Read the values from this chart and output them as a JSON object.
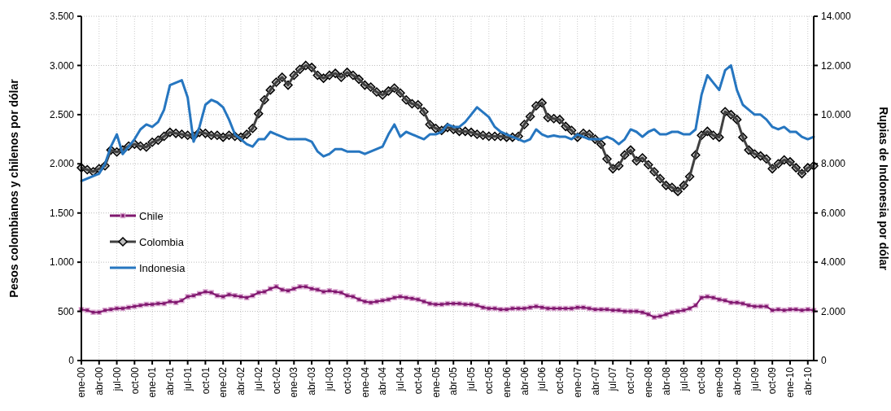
{
  "chart_data": {
    "type": "line",
    "ylabel": "Pesos colombianos y chilenos por dólar",
    "y2label": "Rupias de Indonesia por dólar",
    "categories": [
      "ene-00",
      null,
      null,
      "abr-00",
      null,
      null,
      "jul-00",
      null,
      null,
      "oct-00",
      null,
      null,
      "ene-01",
      null,
      null,
      "abr-01",
      null,
      null,
      "jul-01",
      null,
      null,
      "oct-01",
      null,
      null,
      "ene-02",
      null,
      null,
      "abr-02",
      null,
      null,
      "jul-02",
      null,
      null,
      "oct-02",
      null,
      null,
      "ene-03",
      null,
      null,
      "abr-03",
      null,
      null,
      "jul-03",
      null,
      null,
      "oct-03",
      null,
      null,
      "ene-04",
      null,
      null,
      "abr-04",
      null,
      null,
      "jul-04",
      null,
      null,
      "oct-04",
      null,
      null,
      "ene-05",
      null,
      null,
      "abr-05",
      null,
      null,
      "jul-05",
      null,
      null,
      "oct-05",
      null,
      null,
      "ene-06",
      null,
      null,
      "abr-06",
      null,
      null,
      "jul-06",
      null,
      null,
      "oct-06",
      null,
      null,
      "ene-07",
      null,
      null,
      "abr-07",
      null,
      null,
      "jul-07",
      null,
      null,
      "oct-07",
      null,
      null,
      "ene-08",
      null,
      null,
      "abr-08",
      null,
      null,
      "jul-08",
      null,
      null,
      "oct-08",
      null,
      null,
      "ene-09",
      null,
      null,
      "abr-09",
      null,
      null,
      "jul-09",
      null,
      null,
      "oct-09",
      null,
      null,
      "ene-10",
      null,
      null,
      "abr-10",
      null
    ],
    "ylim": [
      0,
      3500
    ],
    "yticks": [
      0,
      500,
      {
        "value": 1000,
        "label": "1.000"
      },
      {
        "value": 1500,
        "label": "1.500"
      },
      {
        "value": 2000,
        "label": "2.000"
      },
      {
        "value": 2500,
        "label": "2.500"
      },
      {
        "value": 3000,
        "label": "3.000"
      },
      {
        "value": 3500,
        "label": "3.500"
      }
    ],
    "y2lim": [
      0,
      14000
    ],
    "y2ticks": [
      0,
      {
        "value": 2000,
        "label": "2.000"
      },
      {
        "value": 4000,
        "label": "4.000"
      },
      {
        "value": 6000,
        "label": "6.000"
      },
      {
        "value": 8000,
        "label": "8.000"
      },
      {
        "value": 10000,
        "label": "10.000"
      },
      {
        "value": 12000,
        "label": "12.000"
      },
      {
        "value": 14000,
        "label": "14.000"
      }
    ],
    "grid": true,
    "legend": "left",
    "series": [
      {
        "name": "Chile",
        "color": "#80186f",
        "marker": "square",
        "values": [
          520,
          510,
          490,
          490,
          510,
          520,
          530,
          530,
          540,
          550,
          560,
          570,
          570,
          580,
          580,
          600,
          590,
          610,
          650,
          660,
          680,
          700,
          690,
          660,
          650,
          670,
          660,
          650,
          640,
          660,
          690,
          700,
          730,
          750,
          720,
          710,
          730,
          750,
          750,
          730,
          720,
          700,
          710,
          700,
          690,
          660,
          650,
          620,
          600,
          590,
          600,
          610,
          620,
          640,
          650,
          640,
          630,
          620,
          600,
          580,
          570,
          570,
          580,
          580,
          580,
          570,
          570,
          560,
          540,
          530,
          530,
          520,
          520,
          530,
          530,
          530,
          540,
          550,
          540,
          530,
          530,
          530,
          530,
          530,
          540,
          540,
          530,
          520,
          520,
          520,
          510,
          510,
          500,
          500,
          500,
          490,
          470,
          440,
          450,
          470,
          490,
          500,
          510,
          530,
          560,
          640,
          650,
          640,
          620,
          610,
          590,
          590,
          580,
          560,
          550,
          550,
          550,
          510,
          520,
          510,
          520,
          520,
          510,
          520,
          510
        ]
      },
      {
        "name": "Colombia",
        "color": "#404040",
        "marker": "diamond",
        "values": [
          1960,
          1940,
          1920,
          1950,
          1980,
          2140,
          2120,
          2140,
          2180,
          2200,
          2180,
          2170,
          2220,
          2240,
          2280,
          2320,
          2310,
          2300,
          2290,
          2280,
          2320,
          2310,
          2290,
          2290,
          2270,
          2290,
          2280,
          2270,
          2300,
          2360,
          2510,
          2650,
          2750,
          2830,
          2880,
          2800,
          2900,
          2960,
          3000,
          2980,
          2900,
          2870,
          2900,
          2920,
          2880,
          2930,
          2900,
          2860,
          2800,
          2780,
          2730,
          2700,
          2740,
          2770,
          2720,
          2650,
          2610,
          2600,
          2530,
          2400,
          2360,
          2340,
          2370,
          2350,
          2330,
          2330,
          2320,
          2300,
          2290,
          2280,
          2280,
          2280,
          2270,
          2270,
          2280,
          2400,
          2480,
          2590,
          2620,
          2470,
          2460,
          2450,
          2380,
          2340,
          2270,
          2310,
          2300,
          2250,
          2200,
          2050,
          1950,
          1980,
          2090,
          2140,
          2030,
          2060,
          1990,
          1920,
          1850,
          1780,
          1760,
          1720,
          1780,
          1870,
          2090,
          2290,
          2330,
          2290,
          2270,
          2530,
          2500,
          2450,
          2270,
          2140,
          2100,
          2080,
          2050,
          1950,
          2000,
          2040,
          2020,
          1960,
          1900,
          1960,
          1980
        ]
      },
      {
        "name": "Indonesia",
        "color": "#2676c0",
        "marker": "none",
        "axis": "y2",
        "values": [
          7300,
          7400,
          7500,
          7600,
          8000,
          8700,
          9200,
          8400,
          8700,
          9000,
          9400,
          9600,
          9500,
          9700,
          10200,
          11200,
          11300,
          11400,
          10700,
          8900,
          9500,
          10400,
          10600,
          10500,
          10300,
          9800,
          9200,
          9000,
          8800,
          8700,
          9000,
          9000,
          9300,
          9200,
          9100,
          9000,
          9000,
          9000,
          9000,
          8900,
          8500,
          8300,
          8400,
          8600,
          8600,
          8500,
          8500,
          8500,
          8400,
          8500,
          8600,
          8700,
          9200,
          9600,
          9100,
          9300,
          9200,
          9100,
          9000,
          9200,
          9200,
          9300,
          9600,
          9500,
          9500,
          9700,
          10000,
          10300,
          10100,
          9900,
          9500,
          9300,
          9200,
          9100,
          9000,
          8900,
          9000,
          9400,
          9200,
          9100,
          9150,
          9100,
          9100,
          9000,
          9200,
          9100,
          9000,
          9000,
          9000,
          9100,
          9000,
          8800,
          9000,
          9400,
          9300,
          9100,
          9300,
          9400,
          9200,
          9200,
          9300,
          9300,
          9200,
          9200,
          9400,
          10800,
          11600,
          11300,
          11000,
          11800,
          12000,
          11000,
          10400,
          10200,
          10000,
          10000,
          9800,
          9500,
          9400,
          9500,
          9300,
          9300,
          9100,
          9000,
          9100
        ]
      }
    ]
  }
}
